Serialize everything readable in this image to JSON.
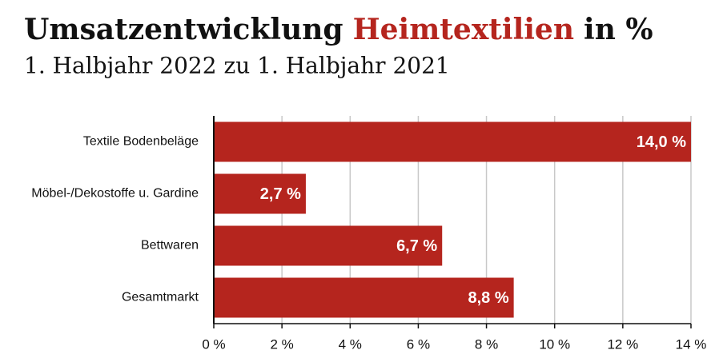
{
  "chart_data": {
    "type": "hbar",
    "title": [
      "Umsatzentwicklung",
      "Heimtextilien",
      "in %"
    ],
    "title_colors": [
      "#111111",
      "#b5251e",
      "#111111"
    ],
    "subtitle": "1. Halbjahr 2022 zu 1. Halbjahr 2021",
    "categories": [
      "Textile Bodenbeläge",
      "Möbel-/Dekostoffe u. Gardine",
      "Bettwaren",
      "Gesamtmarkt"
    ],
    "values": [
      14.0,
      2.7,
      6.7,
      8.8
    ],
    "value_labels": [
      "14,0 %",
      "2,7 %",
      "6,7 %",
      "8,8 %"
    ],
    "color": "#b5251e",
    "xlim": [
      0,
      14
    ],
    "xticks": [
      {
        "value": 0,
        "label": "0 %"
      },
      {
        "value": 2,
        "label": "2 %"
      },
      {
        "value": 4,
        "label": "4 %"
      },
      {
        "value": 6,
        "label": "6 %"
      },
      {
        "value": 8,
        "label": "8 %"
      },
      {
        "value": 10,
        "label": "10 %"
      },
      {
        "value": 12,
        "label": "12 %"
      },
      {
        "value": 14,
        "label": "14 %"
      }
    ],
    "grid": true
  }
}
